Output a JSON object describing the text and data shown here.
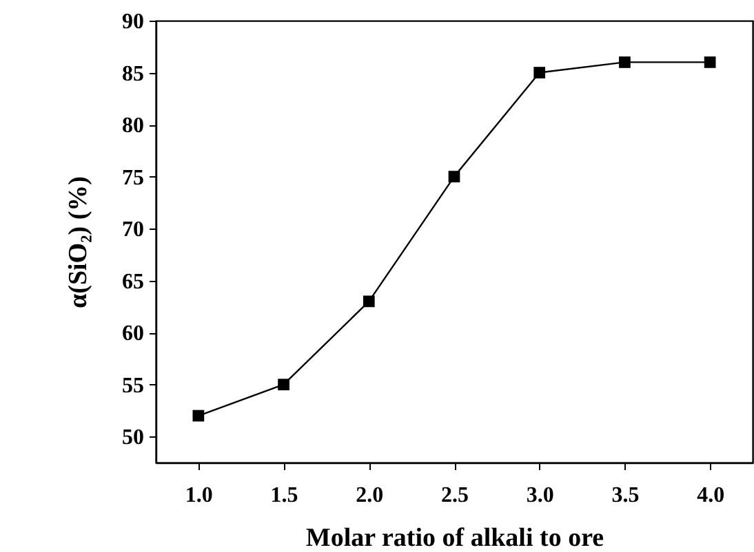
{
  "chart_data": {
    "type": "line",
    "xlabel": "Molar ratio of alkali to ore",
    "ylabel": "α(SiO₂) (%)",
    "x": [
      1.0,
      1.5,
      2.0,
      2.5,
      3.0,
      3.5,
      4.0
    ],
    "series": [
      {
        "color": "#000000",
        "values": [
          52,
          55,
          63,
          75,
          85,
          86,
          86
        ]
      }
    ],
    "xlim": [
      0.75,
      4.25
    ],
    "xticks": [
      {
        "value": 1,
        "label": "1.0"
      },
      {
        "value": 1.5,
        "label": "1.5"
      },
      {
        "value": 2,
        "label": "2.0"
      },
      {
        "value": 2.5,
        "label": "2.5"
      },
      {
        "value": 3,
        "label": "3.0"
      },
      {
        "value": 3.5,
        "label": "3.5"
      },
      {
        "value": 4,
        "label": "4.0"
      }
    ],
    "ylim": [
      47.5,
      90
    ],
    "yticks": [
      50,
      55,
      60,
      65,
      70,
      75,
      80,
      85,
      90
    ],
    "marker": "square",
    "line_style": "solid"
  }
}
